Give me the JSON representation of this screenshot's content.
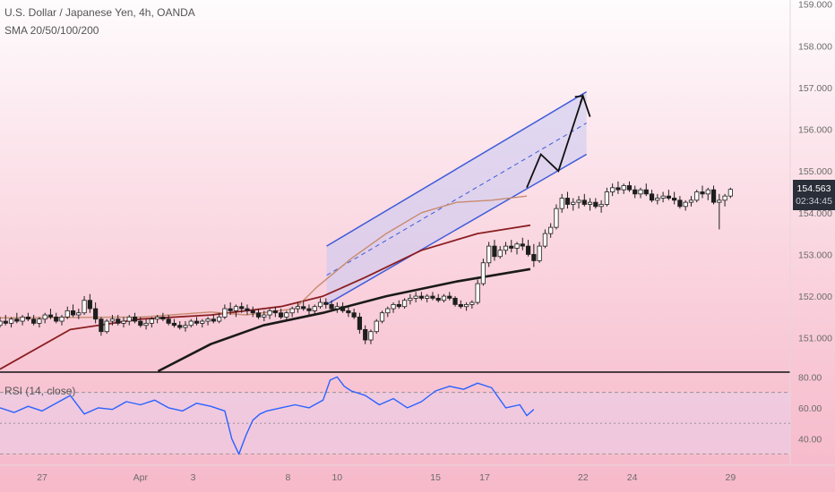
{
  "header": {
    "title": "U.S. Dollar / Japanese Yen, 4h, OANDA",
    "indicator": "SMA 20/50/100/200"
  },
  "rsi_label": "RSI (14, close)",
  "price_badge": {
    "price": "154.563",
    "countdown": "02:34:45"
  },
  "colors": {
    "up": "#26a69a",
    "down": "#ef5350",
    "candle": "#1e1e1e",
    "channel": "#3d5bd9",
    "channel_fill": "#c9c8f2",
    "sma20": "#c78b6f",
    "sma50": "#8b1f22",
    "sma100": "#1a1a1a",
    "rsi": "#2962ff",
    "badge": "#2a2e39"
  },
  "chart_data": [
    {
      "type": "line",
      "title": "U.S. Dollar / Japanese Yen, 4h, OANDA",
      "ylim": [
        150.2,
        159.1
      ],
      "y_ticks": [
        "159.000",
        "158.000",
        "157.000",
        "156.000",
        "155.000",
        "154.000",
        "153.000",
        "152.000",
        "151.000"
      ],
      "x_ticks": [
        "27",
        "Apr",
        "3",
        "8",
        "10",
        "15",
        "17",
        "22",
        "24",
        "29"
      ],
      "x_tick_index": [
        12,
        40,
        55,
        82,
        96,
        124,
        138,
        166,
        180,
        208
      ],
      "x_range": [
        0,
        225
      ],
      "candles_ohlc": [
        [
          151.3,
          151.5,
          151.25,
          151.4
        ],
        [
          151.4,
          151.55,
          151.3,
          151.35
        ],
        [
          151.35,
          151.5,
          151.25,
          151.45
        ],
        [
          151.45,
          151.6,
          151.35,
          151.4
        ],
        [
          151.4,
          151.55,
          151.3,
          151.5
        ],
        [
          151.5,
          151.6,
          151.4,
          151.45
        ],
        [
          151.45,
          151.55,
          151.3,
          151.35
        ],
        [
          151.35,
          151.5,
          151.25,
          151.45
        ],
        [
          151.45,
          151.6,
          151.35,
          151.55
        ],
        [
          151.55,
          151.7,
          151.45,
          151.5
        ],
        [
          151.5,
          151.6,
          151.35,
          151.4
        ],
        [
          151.4,
          151.55,
          151.3,
          151.5
        ],
        [
          151.5,
          151.75,
          151.45,
          151.65
        ],
        [
          151.65,
          151.8,
          151.5,
          151.55
        ],
        [
          151.55,
          151.7,
          151.45,
          151.6
        ],
        [
          151.6,
          152.0,
          151.55,
          151.9
        ],
        [
          151.9,
          152.05,
          151.6,
          151.7
        ],
        [
          151.7,
          151.85,
          151.35,
          151.45
        ],
        [
          151.45,
          151.5,
          151.05,
          151.15
        ],
        [
          151.15,
          151.45,
          151.1,
          151.4
        ],
        [
          151.4,
          151.55,
          151.3,
          151.45
        ],
        [
          151.45,
          151.55,
          151.3,
          151.35
        ],
        [
          151.35,
          151.5,
          151.25,
          151.4
        ],
        [
          151.4,
          151.55,
          151.3,
          151.5
        ],
        [
          151.5,
          151.6,
          151.35,
          151.4
        ],
        [
          151.4,
          151.5,
          151.25,
          151.3
        ],
        [
          151.3,
          151.45,
          151.2,
          151.35
        ],
        [
          151.35,
          151.5,
          151.25,
          151.45
        ],
        [
          151.45,
          151.55,
          151.35,
          151.5
        ],
        [
          151.5,
          151.6,
          151.4,
          151.45
        ],
        [
          151.45,
          151.55,
          151.3,
          151.35
        ],
        [
          151.35,
          151.45,
          151.25,
          151.3
        ],
        [
          151.3,
          151.4,
          151.2,
          151.25
        ],
        [
          151.25,
          151.4,
          151.15,
          151.3
        ],
        [
          151.3,
          151.45,
          151.25,
          151.4
        ],
        [
          151.4,
          151.5,
          151.3,
          151.35
        ],
        [
          151.35,
          151.45,
          151.25,
          151.4
        ],
        [
          151.4,
          151.5,
          151.3,
          151.45
        ],
        [
          151.45,
          151.55,
          151.35,
          151.4
        ],
        [
          151.4,
          151.6,
          151.35,
          151.5
        ],
        [
          151.5,
          151.8,
          151.45,
          151.7
        ],
        [
          151.7,
          151.85,
          151.55,
          151.65
        ],
        [
          151.65,
          151.8,
          151.5,
          151.75
        ],
        [
          151.75,
          151.85,
          151.6,
          151.7
        ],
        [
          151.7,
          151.8,
          151.55,
          151.65
        ],
        [
          151.65,
          151.75,
          151.5,
          151.6
        ],
        [
          151.6,
          151.7,
          151.45,
          151.5
        ],
        [
          151.5,
          151.65,
          151.4,
          151.55
        ],
        [
          151.55,
          151.7,
          151.45,
          151.65
        ],
        [
          151.65,
          151.75,
          151.5,
          151.6
        ],
        [
          151.6,
          151.7,
          151.45,
          151.5
        ],
        [
          151.5,
          151.65,
          151.4,
          151.6
        ],
        [
          151.6,
          151.75,
          151.5,
          151.7
        ],
        [
          151.7,
          151.85,
          151.6,
          151.75
        ],
        [
          151.75,
          151.9,
          151.65,
          151.7
        ],
        [
          151.7,
          151.8,
          151.55,
          151.65
        ],
        [
          151.65,
          151.8,
          151.55,
          151.75
        ],
        [
          151.75,
          151.95,
          151.7,
          151.85
        ],
        [
          151.85,
          151.95,
          151.7,
          151.8
        ],
        [
          151.8,
          151.9,
          151.65,
          151.7
        ],
        [
          151.7,
          151.85,
          151.6,
          151.75
        ],
        [
          151.75,
          151.85,
          151.6,
          151.65
        ],
        [
          151.65,
          151.75,
          151.5,
          151.6
        ],
        [
          151.6,
          151.7,
          151.45,
          151.5
        ],
        [
          151.5,
          151.6,
          151.1,
          151.2
        ],
        [
          151.2,
          151.3,
          150.85,
          150.95
        ],
        [
          150.95,
          151.2,
          150.85,
          151.15
        ],
        [
          151.15,
          151.45,
          151.1,
          151.4
        ],
        [
          151.4,
          151.65,
          151.35,
          151.6
        ],
        [
          151.6,
          151.75,
          151.5,
          151.7
        ],
        [
          151.7,
          151.85,
          151.6,
          151.8
        ],
        [
          151.8,
          151.9,
          151.7,
          151.75
        ],
        [
          151.75,
          151.95,
          151.7,
          151.9
        ],
        [
          151.9,
          152.05,
          151.8,
          151.95
        ],
        [
          151.95,
          152.1,
          151.85,
          152.0
        ],
        [
          152.0,
          152.1,
          151.9,
          151.95
        ],
        [
          151.95,
          152.05,
          151.85,
          152.0
        ],
        [
          152.0,
          152.1,
          151.9,
          151.95
        ],
        [
          151.95,
          152.05,
          151.85,
          151.9
        ],
        [
          151.9,
          152.05,
          151.85,
          152.0
        ],
        [
          152.0,
          152.1,
          151.9,
          151.95
        ],
        [
          151.95,
          152.0,
          151.75,
          151.8
        ],
        [
          151.8,
          151.9,
          151.7,
          151.75
        ],
        [
          151.75,
          151.85,
          151.65,
          151.8
        ],
        [
          151.8,
          151.9,
          151.7,
          151.85
        ],
        [
          151.85,
          152.4,
          151.8,
          152.3
        ],
        [
          152.3,
          152.9,
          152.25,
          152.8
        ],
        [
          152.8,
          153.3,
          152.7,
          153.2
        ],
        [
          153.2,
          153.35,
          152.85,
          152.95
        ],
        [
          152.95,
          153.2,
          152.9,
          153.1
        ],
        [
          153.1,
          153.3,
          153.0,
          153.2
        ],
        [
          153.2,
          153.35,
          153.05,
          153.15
        ],
        [
          153.15,
          153.3,
          153.0,
          153.25
        ],
        [
          153.25,
          153.4,
          153.1,
          153.2
        ],
        [
          153.2,
          153.35,
          152.95,
          153.0
        ],
        [
          153.0,
          153.25,
          152.7,
          152.85
        ],
        [
          152.85,
          153.3,
          152.8,
          153.2
        ],
        [
          153.2,
          153.6,
          153.15,
          153.5
        ],
        [
          153.5,
          153.75,
          153.4,
          153.65
        ],
        [
          153.65,
          154.2,
          153.6,
          154.1
        ],
        [
          154.1,
          154.45,
          154.0,
          154.35
        ],
        [
          154.35,
          154.5,
          154.1,
          154.2
        ],
        [
          154.2,
          154.35,
          154.05,
          154.25
        ],
        [
          154.25,
          154.4,
          154.1,
          154.3
        ],
        [
          154.3,
          154.45,
          154.15,
          154.2
        ],
        [
          154.2,
          154.35,
          154.05,
          154.25
        ],
        [
          154.25,
          154.35,
          154.1,
          154.15
        ],
        [
          154.15,
          154.3,
          154.0,
          154.2
        ],
        [
          154.2,
          154.6,
          154.15,
          154.5
        ],
        [
          154.5,
          154.7,
          154.4,
          154.6
        ],
        [
          154.6,
          154.75,
          154.45,
          154.55
        ],
        [
          154.55,
          154.7,
          154.45,
          154.65
        ],
        [
          154.65,
          154.75,
          154.5,
          154.55
        ],
        [
          154.55,
          154.65,
          154.35,
          154.45
        ],
        [
          154.45,
          154.6,
          154.35,
          154.55
        ],
        [
          154.55,
          154.7,
          154.4,
          154.45
        ],
        [
          154.45,
          154.55,
          154.25,
          154.3
        ],
        [
          154.3,
          154.45,
          154.2,
          154.35
        ],
        [
          154.35,
          154.5,
          154.25,
          154.4
        ],
        [
          154.4,
          154.55,
          154.3,
          154.35
        ],
        [
          154.35,
          154.5,
          154.2,
          154.3
        ],
        [
          154.3,
          154.4,
          154.1,
          154.15
        ],
        [
          154.15,
          154.3,
          154.05,
          154.25
        ],
        [
          154.25,
          154.4,
          154.15,
          154.3
        ],
        [
          154.3,
          154.55,
          154.25,
          154.5
        ],
        [
          154.5,
          154.65,
          154.35,
          154.45
        ],
        [
          154.45,
          154.6,
          154.3,
          154.55
        ],
        [
          154.55,
          154.65,
          154.2,
          154.25
        ],
        [
          154.25,
          154.45,
          153.6,
          154.3
        ],
        [
          154.3,
          154.45,
          154.15,
          154.4
        ],
        [
          154.4,
          154.6,
          154.35,
          154.56
        ]
      ],
      "candle_start_index": 0,
      "candle_step": 1.6,
      "sma20": [
        [
          0,
          151.48
        ],
        [
          40,
          151.5
        ],
        [
          60,
          151.62
        ],
        [
          70,
          151.55
        ],
        [
          84,
          151.7
        ],
        [
          90,
          152.2
        ],
        [
          100,
          152.9
        ],
        [
          110,
          153.5
        ],
        [
          120,
          154.0
        ],
        [
          130,
          154.25
        ],
        [
          140,
          154.3
        ],
        [
          150,
          154.4
        ]
      ],
      "sma50": [
        [
          0,
          150.25
        ],
        [
          20,
          151.2
        ],
        [
          40,
          151.45
        ],
        [
          60,
          151.55
        ],
        [
          80,
          151.75
        ],
        [
          92,
          152.0
        ],
        [
          104,
          152.45
        ],
        [
          120,
          153.1
        ],
        [
          136,
          153.5
        ],
        [
          151,
          153.7
        ]
      ],
      "sma100": [
        [
          45,
          150.2
        ],
        [
          60,
          150.85
        ],
        [
          75,
          151.3
        ],
        [
          92,
          151.6
        ],
        [
          110,
          152.0
        ],
        [
          130,
          152.35
        ],
        [
          151,
          152.65
        ]
      ],
      "channel": {
        "upper": [
          [
            93,
            153.2
          ],
          [
            167,
            156.9
          ]
        ],
        "lower": [
          [
            93,
            151.8
          ],
          [
            167,
            155.4
          ]
        ],
        "mid": [
          [
            93,
            152.5
          ],
          [
            167,
            156.15
          ]
        ]
      },
      "projection": [
        [
          150,
          154.6
        ],
        [
          154,
          155.4
        ],
        [
          159,
          155.0
        ],
        [
          166,
          156.8
        ],
        [
          168,
          156.3
        ]
      ]
    },
    {
      "type": "line",
      "title": "RSI (14, close)",
      "ylim": [
        24,
        82
      ],
      "y_ticks": [
        "80.00",
        "60.00",
        "40.00"
      ],
      "levels": [
        70,
        50,
        30
      ],
      "x": [
        0,
        4,
        8,
        12,
        16,
        20,
        24,
        28,
        32,
        36,
        40,
        44,
        48,
        52,
        56,
        60,
        64,
        66,
        68,
        70,
        72,
        74,
        76,
        80,
        84,
        88,
        92,
        94,
        96,
        98,
        100,
        104,
        108,
        112,
        116,
        120,
        124,
        128,
        132,
        136,
        140,
        144,
        148,
        150,
        152
      ],
      "values": [
        60,
        57,
        61,
        58,
        63,
        68,
        56,
        60,
        59,
        64,
        62,
        65,
        60,
        58,
        63,
        61,
        58,
        40,
        30,
        42,
        52,
        56,
        58,
        60,
        62,
        60,
        65,
        78,
        80,
        74,
        71,
        68,
        62,
        66,
        60,
        64,
        71,
        74,
        72,
        76,
        73,
        60,
        62,
        55,
        59
      ]
    }
  ]
}
